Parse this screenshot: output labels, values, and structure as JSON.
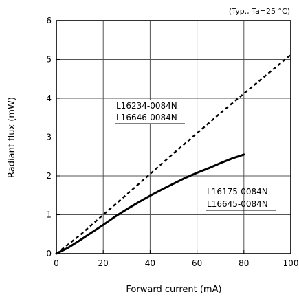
{
  "chart_data": {
    "type": "line",
    "note": "(Typ., Ta=25 °C)",
    "xlabel": "Forward current (mA)",
    "ylabel": "Radiant flux (mW)",
    "xlim": [
      0,
      100
    ],
    "ylim": [
      0,
      6
    ],
    "xticks": [
      0,
      20,
      40,
      60,
      80,
      100
    ],
    "yticks": [
      0,
      1,
      2,
      3,
      4,
      5,
      6
    ],
    "grid": true,
    "series": [
      {
        "labels": [
          "L16234-0084N",
          "L16646-0084N"
        ],
        "style": "dashed",
        "color": "#000000",
        "x": [
          0,
          10,
          20,
          30,
          40,
          50,
          60,
          70,
          80,
          90,
          100
        ],
        "y": [
          0,
          0.47,
          1.0,
          1.52,
          2.05,
          2.58,
          3.1,
          3.62,
          4.12,
          4.62,
          5.12
        ]
      },
      {
        "labels": [
          "L16175-0084N",
          "L16645-0084N"
        ],
        "style": "solid",
        "color": "#000000",
        "x": [
          0,
          5,
          10,
          15,
          20,
          25,
          30,
          35,
          40,
          45,
          50,
          55,
          60,
          65,
          70,
          75,
          80
        ],
        "y": [
          0,
          0.15,
          0.34,
          0.54,
          0.74,
          0.95,
          1.14,
          1.32,
          1.49,
          1.65,
          1.8,
          1.95,
          2.08,
          2.2,
          2.33,
          2.45,
          2.55
        ]
      }
    ]
  }
}
